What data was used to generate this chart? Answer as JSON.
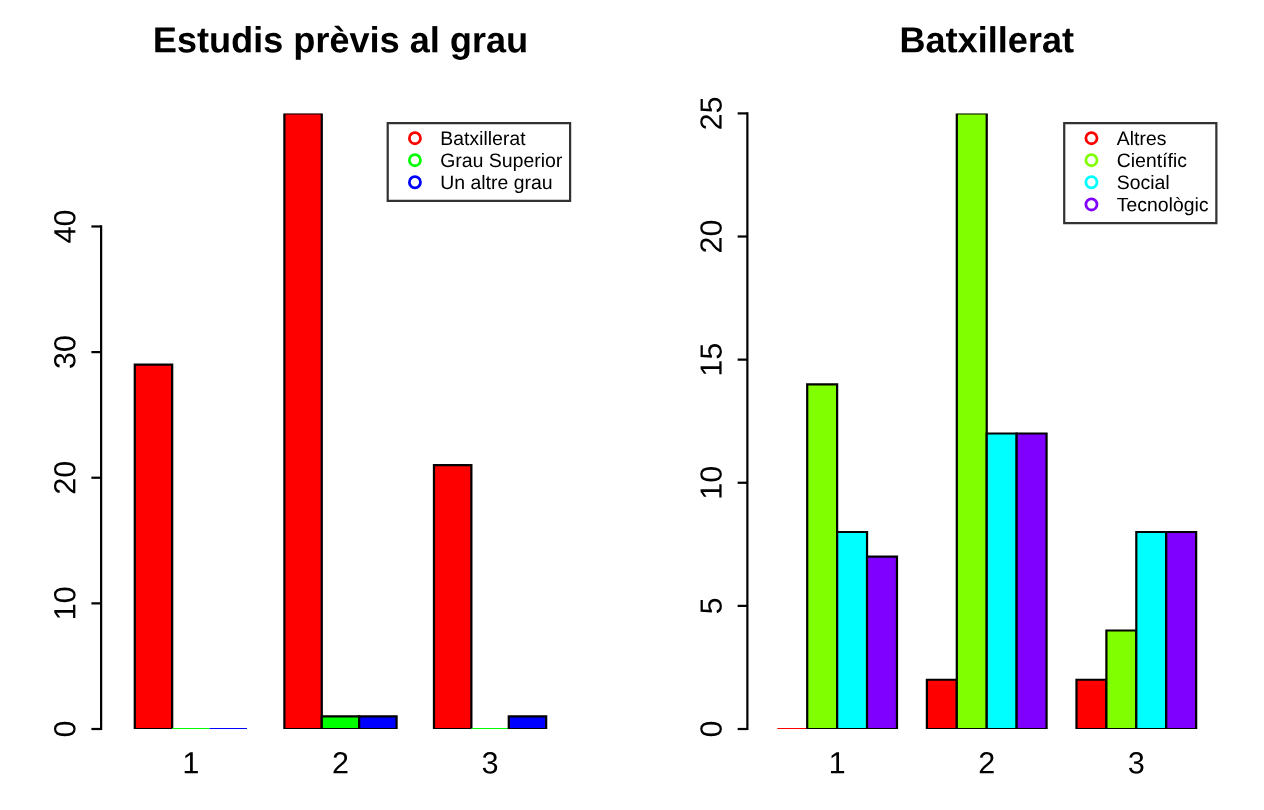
{
  "chart_data": [
    {
      "type": "bar",
      "title": "Estudis prèvis al grau",
      "categories": [
        "1",
        "2",
        "3"
      ],
      "series": [
        {
          "name": "Batxillerat",
          "color": "#ff0000",
          "values": [
            29,
            49,
            21
          ]
        },
        {
          "name": "Grau Superior",
          "color": "#00ff00",
          "values": [
            0,
            1,
            0
          ]
        },
        {
          "name": "Un altre grau",
          "color": "#0000ff",
          "values": [
            0,
            1,
            1
          ]
        }
      ],
      "ylim": [
        0,
        49
      ],
      "yticks": [
        0,
        10,
        20,
        30,
        40
      ],
      "legend": "top right",
      "grid": false
    },
    {
      "type": "bar",
      "title": "Batxillerat",
      "categories": [
        "1",
        "2",
        "3"
      ],
      "series": [
        {
          "name": "Altres",
          "color": "#ff0000",
          "values": [
            0,
            2,
            2
          ]
        },
        {
          "name": "Científic",
          "color": "#80ff00",
          "values": [
            14,
            25,
            4
          ]
        },
        {
          "name": "Social",
          "color": "#00ffff",
          "values": [
            8,
            12,
            8
          ]
        },
        {
          "name": "Tecnològic",
          "color": "#8000ff",
          "values": [
            7,
            12,
            8
          ]
        }
      ],
      "ylim": [
        0,
        25
      ],
      "yticks": [
        0,
        5,
        10,
        15,
        20,
        25
      ],
      "legend": "top right",
      "grid": false
    }
  ]
}
